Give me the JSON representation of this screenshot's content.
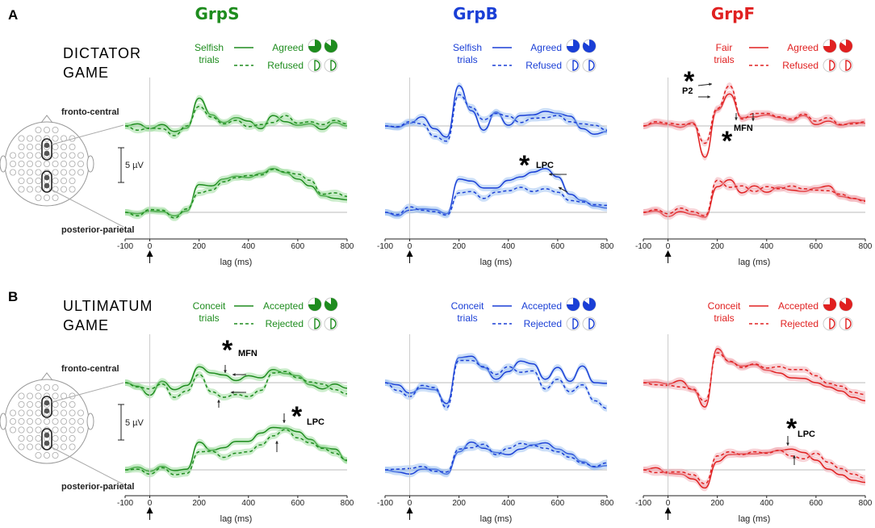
{
  "section_labels": [
    "A",
    "B"
  ],
  "groups": [
    {
      "name": "GrpS",
      "color": "#1e8c1e",
      "light": "#8fd88f"
    },
    {
      "name": "GrpB",
      "color": "#1a3fd6",
      "light": "#8fb8f0"
    },
    {
      "name": "GrpF",
      "color": "#e02020",
      "light": "#f0a0a8"
    }
  ],
  "games": [
    {
      "title_line1": "DICTATOR",
      "title_line2": "GAME",
      "legends": [
        {
          "trial_line1": "Selfish",
          "trial_line2": "trials",
          "solid": "Agreed",
          "dashed": "Refused"
        },
        {
          "trial_line1": "Selfish",
          "trial_line2": "trials",
          "solid": "Agreed",
          "dashed": "Refused"
        },
        {
          "trial_line1": "Fair",
          "trial_line2": "trials",
          "solid": "Agreed",
          "dashed": "Refused"
        }
      ]
    },
    {
      "title_line1": "ULTIMATUM",
      "title_line2": "GAME",
      "legends": [
        {
          "trial_line1": "Conceit",
          "trial_line2": "trials",
          "solid": "Accepted",
          "dashed": "Rejected"
        },
        {
          "trial_line1": "Conceit",
          "trial_line2": "trials",
          "solid": "Accepted",
          "dashed": "Rejected"
        },
        {
          "trial_line1": "Conceit",
          "trial_line2": "trials",
          "solid": "Accepted",
          "dashed": "Rejected"
        }
      ]
    }
  ],
  "channel_labels": {
    "top": "fronto-central",
    "bottom": "posterior-parietal"
  },
  "scale_bar_label": "5 µV",
  "annotations": {
    "star": "*",
    "mfn": "MFN",
    "lpc": "LPC",
    "p2": "P2"
  },
  "chart_data": {
    "type": "line",
    "xlabel": "lag (ms)",
    "xlim": [
      -100,
      800
    ],
    "xticks": [
      -100,
      0,
      200,
      400,
      600,
      800
    ],
    "scale_bar_uV": 5,
    "note": "ERP waveforms (µV, relative to baseline) at fronto-central and posterior-parietal electrodes; solid = agreed/accepted, dashed = refused/rejected; shaded = SEM",
    "x": [
      -100,
      -50,
      0,
      50,
      100,
      150,
      200,
      250,
      300,
      350,
      400,
      450,
      500,
      550,
      600,
      650,
      700,
      750,
      800
    ],
    "panels": [
      {
        "game": "Dictator",
        "group": "GrpS",
        "channel": "fronto-central",
        "series": [
          {
            "name": "Agreed",
            "values": [
              0,
              0.3,
              -0.4,
              0.2,
              -0.8,
              -0.3,
              4.0,
              1.6,
              0.5,
              1.2,
              0.7,
              -0.4,
              1.5,
              0.6,
              0.1,
              0.3,
              -0.5,
              0.5,
              0.0
            ]
          },
          {
            "name": "Refused",
            "values": [
              0,
              -0.6,
              -0.3,
              -0.4,
              -1.4,
              0.0,
              2.8,
              1.3,
              0.3,
              0.8,
              -0.1,
              0.2,
              0.5,
              1.5,
              0.4,
              0.6,
              0.2,
              0.8,
              0.3
            ]
          }
        ]
      },
      {
        "game": "Dictator",
        "group": "GrpS",
        "channel": "posterior-parietal",
        "series": [
          {
            "name": "Agreed",
            "values": [
              0,
              -0.2,
              0.2,
              0.1,
              -0.5,
              0.2,
              4.0,
              3.8,
              4.8,
              5.2,
              5.0,
              5.6,
              6.3,
              5.7,
              4.8,
              3.8,
              2.4,
              2.0,
              1.8
            ]
          },
          {
            "name": "Refused",
            "values": [
              0,
              -0.5,
              0.4,
              0.3,
              -0.8,
              0.5,
              2.8,
              3.2,
              4.4,
              5.0,
              5.3,
              5.4,
              6.2,
              5.8,
              5.5,
              4.6,
              2.6,
              2.8,
              2.3
            ]
          }
        ]
      },
      {
        "game": "Dictator",
        "group": "GrpB",
        "channel": "fronto-central",
        "series": [
          {
            "name": "Agreed",
            "values": [
              0,
              -0.2,
              0.4,
              1.3,
              -0.4,
              -1.6,
              5.8,
              2.2,
              -0.6,
              2.0,
              0.1,
              1.5,
              1.6,
              2.1,
              1.8,
              1.4,
              -0.4,
              -1.2,
              -0.8
            ]
          },
          {
            "name": "Refused",
            "values": [
              0,
              -0.1,
              0.6,
              0.3,
              -1.5,
              -2.2,
              4.5,
              2.7,
              0.9,
              1.8,
              1.4,
              0.5,
              1.1,
              1.2,
              1.5,
              0.6,
              0.3,
              0.1,
              -0.6
            ]
          }
        ]
      },
      {
        "game": "Dictator",
        "group": "GrpB",
        "channel": "posterior-parietal",
        "series": [
          {
            "name": "Agreed",
            "values": [
              0,
              -0.5,
              0.3,
              0.5,
              0.4,
              -0.2,
              4.8,
              4.5,
              3.5,
              3.5,
              4.6,
              5.1,
              5.8,
              6.3,
              5.1,
              2.6,
              1.7,
              0.9,
              0.6
            ]
          },
          {
            "name": "Refused",
            "values": [
              0,
              -0.3,
              0.8,
              0.3,
              0.1,
              -0.4,
              2.8,
              3.0,
              2.0,
              2.9,
              3.1,
              3.6,
              3.0,
              3.4,
              2.9,
              1.7,
              1.5,
              1.1,
              1.0
            ]
          }
        ]
      },
      {
        "game": "Dictator",
        "group": "GrpF",
        "channel": "fronto-central",
        "series": [
          {
            "name": "Agreed",
            "values": [
              0,
              0.4,
              0.2,
              -0.2,
              0.5,
              -4.5,
              2.3,
              4.6,
              1.2,
              1.3,
              1.6,
              1.2,
              0.8,
              1.5,
              0.2,
              0.7,
              0.1,
              0.5,
              0.4
            ]
          },
          {
            "name": "Refused",
            "values": [
              0,
              0.6,
              0.4,
              0.2,
              0.3,
              -2.5,
              2.5,
              5.8,
              1.0,
              1.8,
              1.8,
              1.3,
              1.0,
              1.7,
              0.7,
              1.2,
              0.2,
              0.3,
              0.6
            ]
          }
        ]
      },
      {
        "game": "Dictator",
        "group": "GrpF",
        "channel": "posterior-parietal",
        "series": [
          {
            "name": "Agreed",
            "values": [
              0,
              0.2,
              -0.6,
              0.1,
              -0.3,
              -0.7,
              3.7,
              4.7,
              2.8,
              3.8,
              2.9,
              3.6,
              3.2,
              3.0,
              3.5,
              3.8,
              2.3,
              2.0,
              1.7
            ]
          },
          {
            "name": "Refused",
            "values": [
              0,
              0.4,
              -0.2,
              0.6,
              0.1,
              -0.5,
              4.6,
              3.6,
              3.8,
              3.0,
              3.7,
              3.4,
              3.8,
              3.4,
              3.2,
              3.1,
              2.6,
              2.0,
              1.6
            ]
          }
        ]
      },
      {
        "game": "Ultimatum",
        "group": "GrpS",
        "channel": "fronto-central",
        "series": [
          {
            "name": "Accepted",
            "values": [
              0,
              -0.5,
              -1.8,
              0.2,
              -1.0,
              -0.4,
              2.3,
              1.4,
              1.1,
              0.3,
              1.0,
              0.7,
              1.9,
              1.3,
              1.0,
              -0.3,
              -0.9,
              -0.2,
              -0.8
            ]
          },
          {
            "name": "Rejected",
            "values": [
              0,
              -0.6,
              -0.9,
              -0.2,
              -2.1,
              -1.2,
              1.2,
              -1.3,
              -2.1,
              -1.7,
              -2.0,
              -1.1,
              1.4,
              1.6,
              0.7,
              0.1,
              -0.2,
              -1.0,
              -1.6
            ]
          }
        ]
      },
      {
        "game": "Ultimatum",
        "group": "GrpS",
        "channel": "posterior-parietal",
        "series": [
          {
            "name": "Accepted",
            "values": [
              0,
              0.4,
              -0.2,
              0.5,
              -0.1,
              0.1,
              4.0,
              2.8,
              3.2,
              4.1,
              4.1,
              5.3,
              6.1,
              6.0,
              5.5,
              4.4,
              3.2,
              3.0,
              1.3
            ]
          },
          {
            "name": "Rejected",
            "values": [
              0,
              0.1,
              -0.6,
              0.3,
              -0.7,
              -0.5,
              2.6,
              2.7,
              1.8,
              2.4,
              2.6,
              3.6,
              4.9,
              5.8,
              4.6,
              3.9,
              3.1,
              2.4,
              1.4
            ]
          }
        ]
      },
      {
        "game": "Ultimatum",
        "group": "GrpB",
        "channel": "fronto-central",
        "series": [
          {
            "name": "Accepted",
            "values": [
              0,
              -0.3,
              -1.5,
              -0.8,
              -1.0,
              -3.0,
              3.6,
              3.8,
              2.2,
              0.5,
              1.6,
              3.1,
              2.7,
              0.5,
              2.2,
              0.2,
              2.4,
              0.0,
              -0.1
            ]
          },
          {
            "name": "Rejected",
            "values": [
              0,
              -1.1,
              -2.0,
              -0.4,
              -0.7,
              -3.6,
              3.2,
              3.2,
              2.3,
              1.2,
              2.3,
              1.5,
              1.7,
              -0.9,
              0.5,
              -1.3,
              -0.3,
              -2.6,
              -3.7
            ]
          }
        ]
      },
      {
        "game": "Ultimatum",
        "group": "GrpB",
        "channel": "posterior-parietal",
        "series": [
          {
            "name": "Accepted",
            "values": [
              0,
              -0.3,
              -0.6,
              0.1,
              0.1,
              -0.6,
              2.6,
              4.0,
              3.1,
              2.5,
              2.2,
              3.0,
              3.6,
              3.9,
              3.0,
              2.3,
              1.2,
              0.4,
              0.6
            ]
          },
          {
            "name": "Rejected",
            "values": [
              0,
              0.1,
              0.2,
              0.5,
              -0.2,
              -0.3,
              3.0,
              3.2,
              3.7,
              2.2,
              3.1,
              3.8,
              3.5,
              3.1,
              2.6,
              1.8,
              1.0,
              0.5,
              1.0
            ]
          }
        ]
      },
      {
        "game": "Ultimatum",
        "group": "GrpF",
        "channel": "fronto-central",
        "series": [
          {
            "name": "Accepted",
            "values": [
              0,
              0.1,
              -0.2,
              0.3,
              -1.0,
              -3.5,
              4.9,
              3.0,
              2.4,
              2.6,
              1.8,
              1.4,
              0.7,
              0.6,
              0.0,
              -0.6,
              -1.2,
              -2.1,
              -2.6
            ]
          },
          {
            "name": "Rejected",
            "values": [
              0,
              -0.3,
              -0.4,
              -0.6,
              -0.9,
              -2.7,
              4.3,
              3.1,
              2.2,
              2.7,
              2.1,
              2.3,
              1.9,
              1.9,
              1.0,
              -0.1,
              -0.5,
              -1.4,
              -1.7
            ]
          }
        ]
      },
      {
        "game": "Ultimatum",
        "group": "GrpF",
        "channel": "posterior-parietal",
        "series": [
          {
            "name": "Accepted",
            "values": [
              0,
              0.3,
              -0.5,
              -0.6,
              -1.3,
              -2.6,
              1.2,
              2.2,
              2.3,
              2.3,
              2.5,
              2.8,
              3.0,
              2.5,
              1.4,
              0.1,
              -0.7,
              -1.5,
              -1.8
            ]
          },
          {
            "name": "Rejected",
            "values": [
              0,
              -0.4,
              -0.3,
              -0.3,
              -0.7,
              -2.0,
              2.0,
              2.6,
              2.2,
              2.6,
              2.4,
              2.8,
              2.0,
              1.6,
              2.4,
              1.1,
              0.2,
              -0.6,
              -1.2
            ]
          }
        ]
      }
    ]
  }
}
